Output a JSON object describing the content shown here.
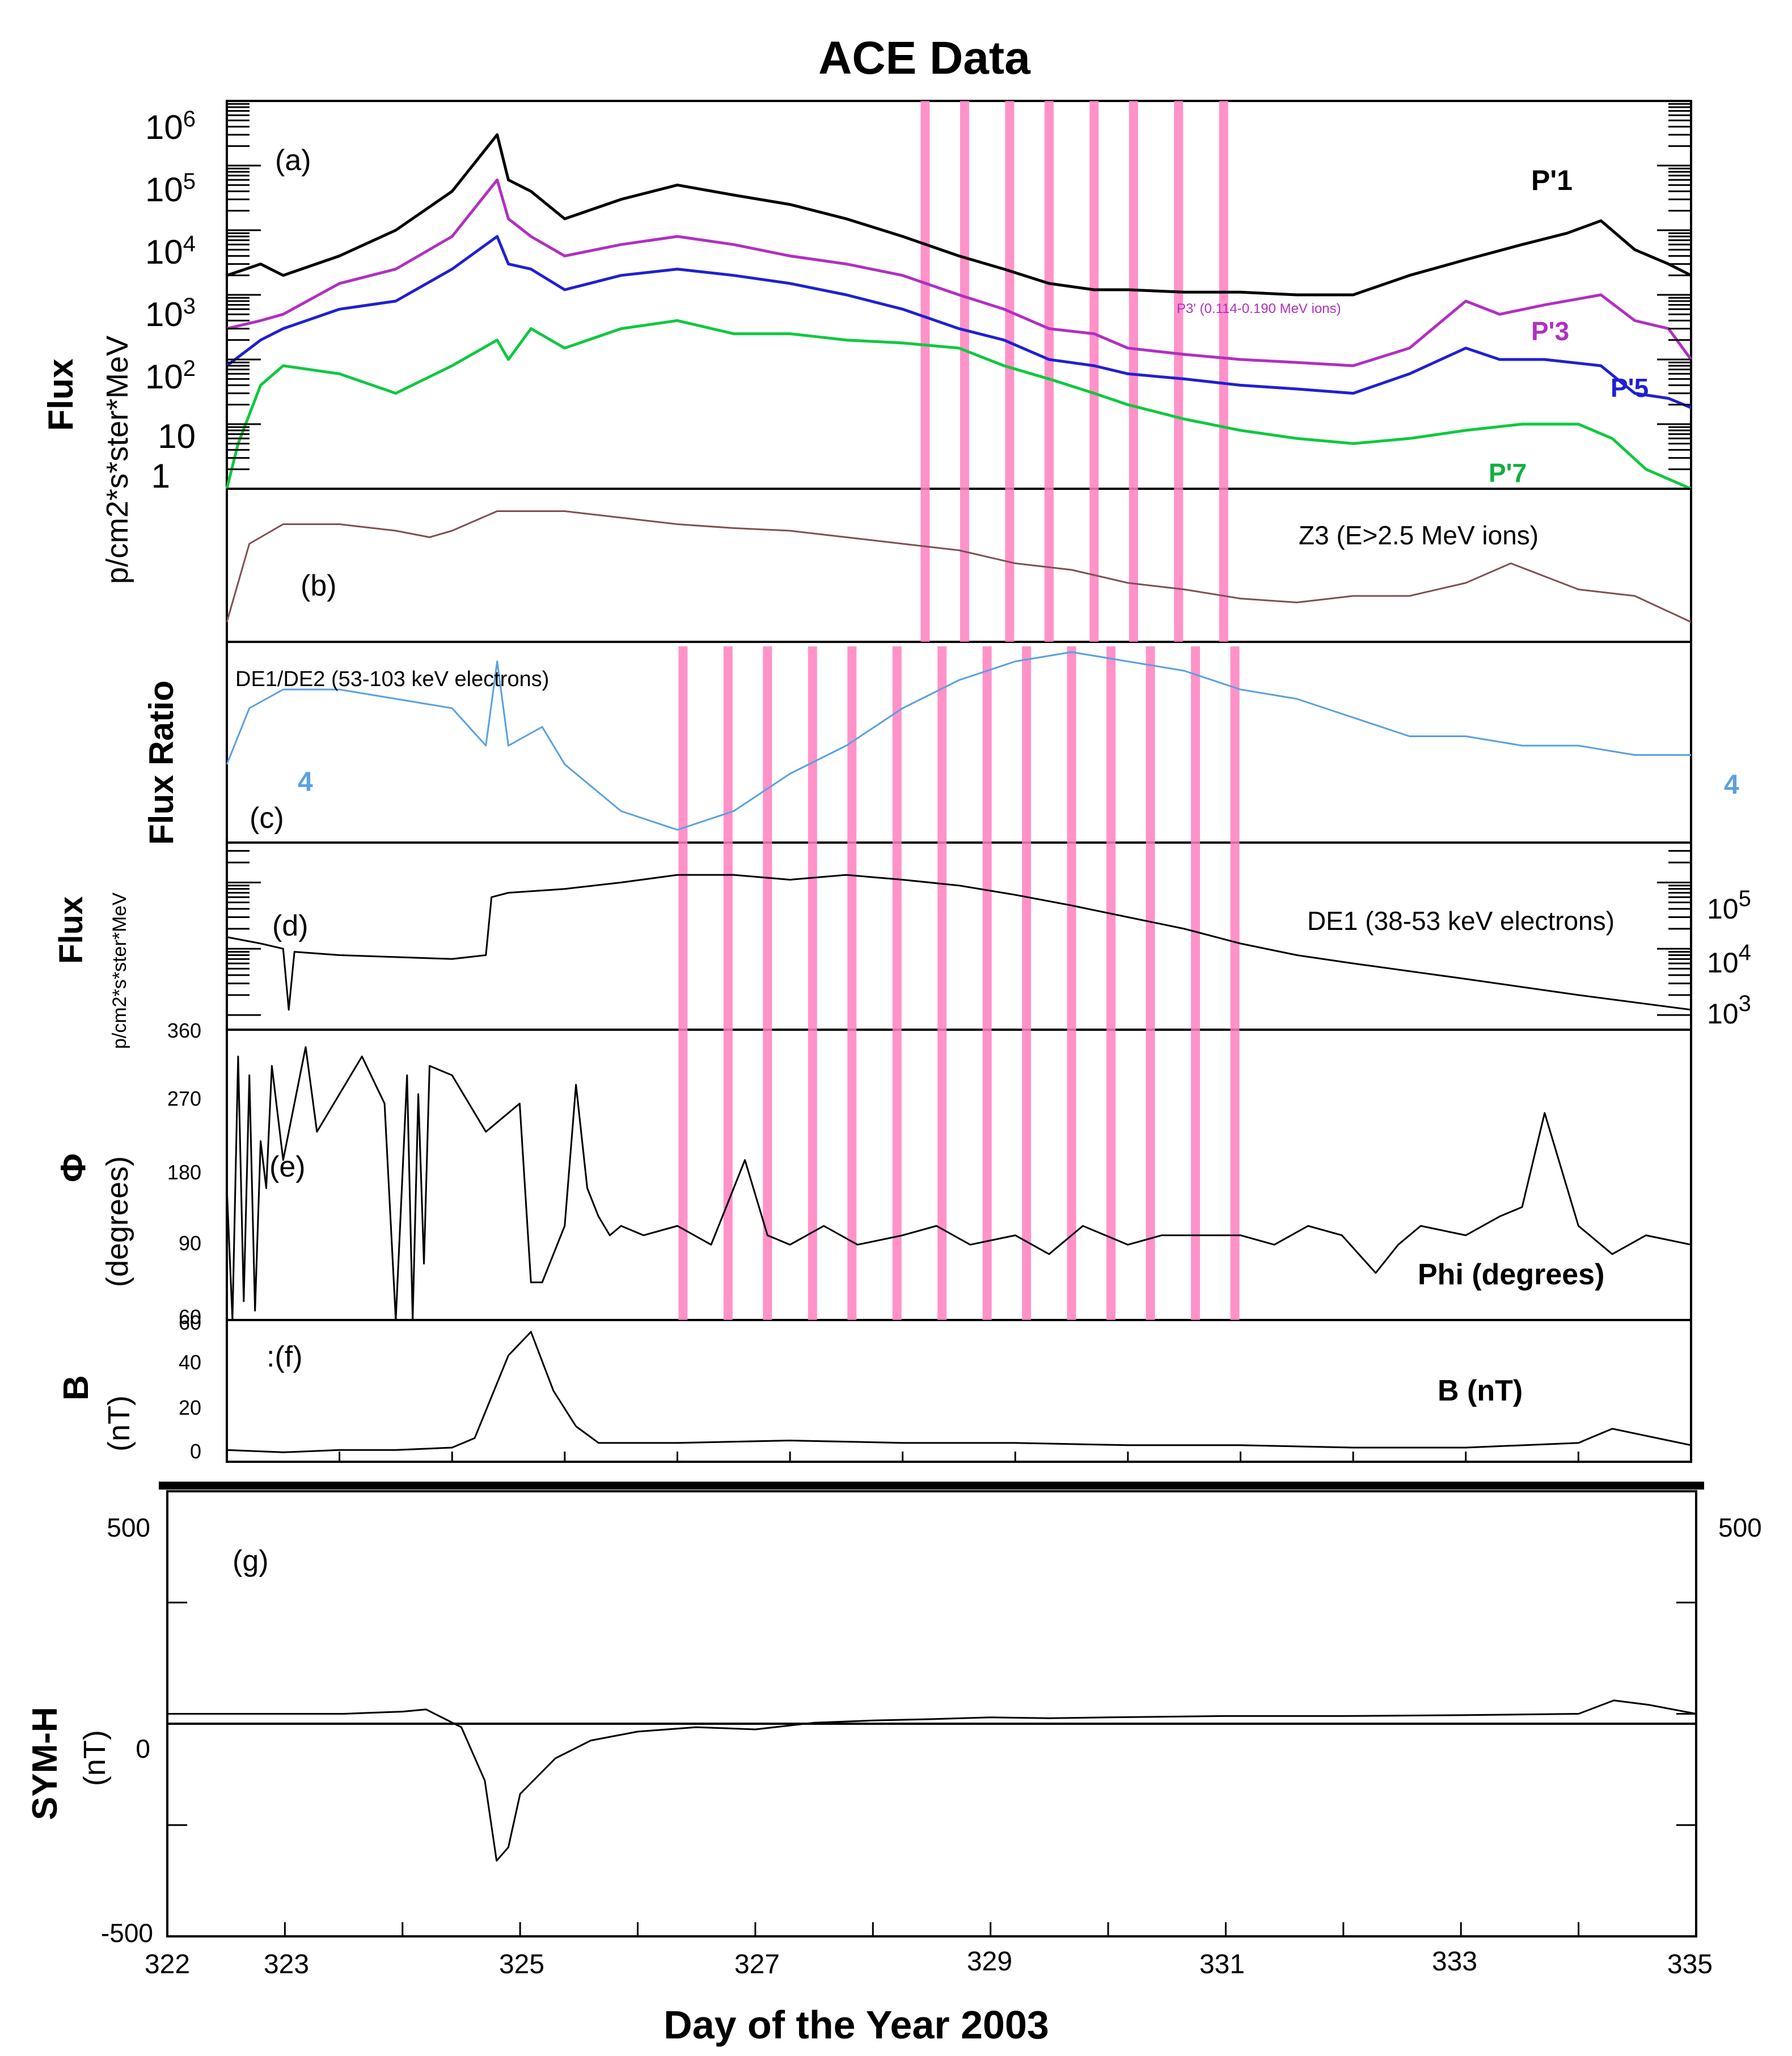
{
  "chart_data": {
    "title": "ACE Data",
    "type": "line",
    "x_range": [
      322,
      335
    ],
    "xlabel": "Day of the Year 2003",
    "x_ticks": [
      322,
      323,
      325,
      327,
      329,
      331,
      333,
      335
    ],
    "highlight_bands": {
      "color": "#ff7fbf",
      "upper_panels_days": [
        328.2,
        328.55,
        328.95,
        329.3,
        329.7,
        330.05,
        330.45,
        330.85
      ],
      "lower_panels_days": [
        326.05,
        326.45,
        326.8,
        327.2,
        327.55,
        327.95,
        328.35,
        328.75,
        329.1,
        329.5,
        329.85,
        330.2,
        330.6,
        330.95
      ]
    },
    "panels": [
      {
        "id": "a",
        "label": "(a)",
        "ylabel": "Flux",
        "ylabel_units": "p/cm2*s*ster*MeV",
        "y_scale": "log",
        "y_ticks": [
          {
            "label": "10",
            "exp": "6",
            "value": 1000000
          },
          {
            "label": "10",
            "exp": "5",
            "value": 100000
          },
          {
            "label": "10",
            "exp": "4",
            "value": 10000
          },
          {
            "label": "10",
            "exp": "3",
            "value": 1000
          },
          {
            "label": "10",
            "exp": "2",
            "value": 100
          },
          {
            "label": "10",
            "exp": "",
            "value": 10
          },
          {
            "label": "1",
            "exp": "",
            "value": 1
          }
        ],
        "annotation": "P3' (0.114-0.190 MeV ions)",
        "series": [
          {
            "name": "P'1",
            "color": "#000000",
            "x": [
              322,
              322.3,
              322.5,
              323,
              323.5,
              324,
              324.4,
              324.5,
              324.7,
              325,
              325.5,
              326,
              326.5,
              327,
              327.5,
              328,
              328.5,
              328.9,
              329.3,
              329.7,
              330,
              330.5,
              331,
              331.5,
              332,
              332.5,
              333,
              333.5,
              333.9,
              334.2,
              334.5,
              334.8,
              335
            ],
            "values": [
              2000,
              3000,
              2000,
              4000,
              10000,
              40000,
              300000,
              60000,
              40000,
              15000,
              30000,
              50000,
              35000,
              25000,
              15000,
              8000,
              4000,
              2500,
              1500,
              1200,
              1200,
              1100,
              1100,
              1000,
              1000,
              2000,
              3500,
              6000,
              9000,
              14000,
              5000,
              3000,
              2000
            ]
          },
          {
            "name": "P'3",
            "color": "#b030c0",
            "x": [
              322,
              322.3,
              322.5,
              323,
              323.5,
              324,
              324.4,
              324.5,
              324.7,
              325,
              325.5,
              326,
              326.5,
              327,
              327.5,
              328,
              328.5,
              328.9,
              329.3,
              329.7,
              330,
              330.5,
              331,
              331.5,
              332,
              332.5,
              333,
              333.3,
              333.7,
              334.2,
              334.5,
              334.8,
              335
            ],
            "values": [
              300,
              400,
              500,
              1500,
              2500,
              8000,
              60000,
              15000,
              8000,
              4000,
              6000,
              8000,
              6000,
              4000,
              3000,
              2000,
              1000,
              600,
              300,
              250,
              150,
              120,
              100,
              90,
              80,
              150,
              800,
              500,
              700,
              1000,
              400,
              300,
              100
            ]
          },
          {
            "name": "P'5",
            "color": "#2020d0",
            "x": [
              322,
              322.3,
              322.5,
              323,
              323.5,
              324,
              324.4,
              324.5,
              324.7,
              325,
              325.5,
              326,
              326.5,
              327,
              327.5,
              328,
              328.5,
              328.9,
              329.3,
              329.7,
              330,
              330.5,
              331,
              331.5,
              332,
              332.5,
              333,
              333.3,
              333.7,
              334.2,
              334.5,
              334.8,
              335
            ],
            "values": [
              80,
              200,
              300,
              600,
              800,
              2500,
              8000,
              3000,
              2500,
              1200,
              2000,
              2500,
              2000,
              1500,
              1000,
              600,
              300,
              200,
              100,
              80,
              60,
              50,
              40,
              35,
              30,
              60,
              150,
              100,
              100,
              80,
              30,
              25,
              18
            ]
          },
          {
            "name": "P'7",
            "color": "#10c840",
            "x": [
              322,
              322.1,
              322.3,
              322.5,
              323,
              323.5,
              324,
              324.4,
              324.5,
              324.7,
              325,
              325.5,
              326,
              326.5,
              327,
              327.5,
              328,
              328.5,
              328.9,
              329.3,
              329.7,
              330,
              330.5,
              331,
              331.5,
              332,
              332.5,
              333,
              333.5,
              334,
              334.3,
              334.6,
              335
            ],
            "values": [
              1,
              5,
              40,
              80,
              60,
              30,
              80,
              200,
              100,
              300,
              150,
              300,
              400,
              250,
              250,
              200,
              180,
              150,
              80,
              50,
              30,
              20,
              12,
              8,
              6,
              5,
              6,
              8,
              10,
              10,
              6,
              2,
              1
            ]
          }
        ]
      },
      {
        "id": "b",
        "label": "(b)",
        "series": [
          {
            "name": "Z3 (E>2.5 MeV ions)",
            "color": "#805050",
            "x": [
              322,
              322.2,
              322.5,
              323,
              323.5,
              323.8,
              324,
              324.4,
              325,
              325.5,
              326,
              326.5,
              327,
              327.5,
              328,
              328.5,
              329,
              329.5,
              330,
              330.5,
              331,
              331.5,
              332,
              332.5,
              333,
              333.4,
              334,
              334.5,
              335
            ],
            "values": [
              0.1,
              0.7,
              0.85,
              0.85,
              0.8,
              0.75,
              0.8,
              0.95,
              0.95,
              0.9,
              0.85,
              0.82,
              0.8,
              0.75,
              0.7,
              0.65,
              0.55,
              0.5,
              0.4,
              0.35,
              0.28,
              0.25,
              0.3,
              0.3,
              0.4,
              0.55,
              0.35,
              0.3,
              0.1
            ]
          }
        ]
      },
      {
        "id": "c",
        "label": "(c)",
        "ylabel": "Flux Ratio",
        "tick_label_left": "4",
        "tick_label_right": "4",
        "series": [
          {
            "name": "DE1/DE2 (53-103 keV electrons)",
            "color": "#5aa0e0",
            "x": [
              322,
              322.2,
              322.5,
              323,
              323.5,
              324,
              324.3,
              324.4,
              324.5,
              324.8,
              325,
              325.5,
              326,
              326.5,
              327,
              327.5,
              328,
              328.5,
              329,
              329.5,
              330,
              330.5,
              331,
              331.5,
              332,
              332.5,
              333,
              333.5,
              334,
              334.5,
              335
            ],
            "values": [
              0.4,
              0.7,
              0.8,
              0.8,
              0.75,
              0.7,
              0.5,
              0.95,
              0.5,
              0.6,
              0.4,
              0.15,
              0.05,
              0.15,
              0.35,
              0.5,
              0.7,
              0.85,
              0.95,
              1.0,
              0.95,
              0.9,
              0.8,
              0.75,
              0.65,
              0.55,
              0.55,
              0.5,
              0.5,
              0.45,
              0.45
            ]
          }
        ]
      },
      {
        "id": "d",
        "label": "(d)",
        "ylabel": "Flux",
        "ylabel_units": "p/cm2*s*ster*MeV",
        "y_scale": "log",
        "y_ticks_right": [
          {
            "label": "10",
            "exp": "5",
            "value": 100000
          },
          {
            "label": "10",
            "exp": "4",
            "value": 10000
          },
          {
            "label": "10",
            "exp": "3",
            "value": 1000
          }
        ],
        "series": [
          {
            "name": "DE1 (38-53 keV electrons)",
            "color": "#000000",
            "x": [
              322,
              322.3,
              322.5,
              322.55,
              322.6,
              323,
              324,
              324.3,
              324.35,
              324.5,
              325,
              325.5,
              326,
              326.5,
              327,
              327.5,
              328,
              328.5,
              329,
              329.5,
              330,
              330.5,
              331,
              331.5,
              332,
              333,
              334,
              335
            ],
            "values": [
              15000,
              12000,
              10000,
              1200,
              9000,
              8000,
              7000,
              8000,
              60000,
              70000,
              80000,
              100000,
              130000,
              130000,
              110000,
              130000,
              110000,
              90000,
              65000,
              45000,
              30000,
              20000,
              12000,
              8000,
              6000,
              3500,
              2000,
              1200
            ]
          }
        ]
      },
      {
        "id": "e",
        "label": "(e)",
        "ylabel": "Φ",
        "ylabel_units": "(degrees)",
        "y_range": [
          60,
          360
        ],
        "y_ticks": [
          "360",
          "270",
          "180",
          "90",
          "60"
        ],
        "series": [
          {
            "name": "Phi (degrees)",
            "color": "#000000",
            "x": [
              322,
              322.05,
              322.1,
              322.15,
              322.2,
              322.25,
              322.3,
              322.35,
              322.4,
              322.5,
              322.7,
              322.8,
              323,
              323.2,
              323.4,
              323.5,
              323.6,
              323.65,
              323.7,
              323.75,
              323.8,
              324,
              324.3,
              324.6,
              324.7,
              324.8,
              325,
              325.1,
              325.2,
              325.3,
              325.4,
              325.5,
              325.7,
              326,
              326.3,
              326.5,
              326.6,
              326.8,
              327,
              327.3,
              327.6,
              328,
              328.3,
              328.6,
              329,
              329.3,
              329.6,
              330,
              330.3,
              330.6,
              331,
              331.3,
              331.6,
              331.9,
              332.2,
              332.4,
              332.6,
              333,
              333.3,
              333.5,
              333.7,
              334,
              334.3,
              334.6,
              335
            ],
            "values": [
              200,
              60,
              340,
              80,
              320,
              70,
              250,
              200,
              330,
              230,
              350,
              260,
              300,
              340,
              290,
              60,
              320,
              60,
              300,
              120,
              330,
              320,
              260,
              290,
              100,
              100,
              160,
              310,
              200,
              170,
              150,
              160,
              150,
              160,
              140,
              200,
              230,
              150,
              140,
              160,
              140,
              150,
              160,
              140,
              150,
              130,
              160,
              140,
              150,
              150,
              150,
              140,
              160,
              150,
              110,
              140,
              160,
              150,
              170,
              180,
              280,
              160,
              130,
              150,
              140
            ]
          }
        ]
      },
      {
        "id": "f",
        "label": ":(f)",
        "ylabel": "B",
        "ylabel_units": "(nT)",
        "y_range": [
          0,
          60
        ],
        "y_ticks": [
          "60",
          "40",
          "20",
          "0"
        ],
        "series": [
          {
            "name": "B (nT)",
            "color": "#000000",
            "x": [
              322,
              322.5,
              323,
              323.5,
              324,
              324.2,
              324.5,
              324.7,
              324.9,
              325.1,
              325.3,
              326,
              327,
              328,
              329,
              330,
              331,
              332,
              333,
              334,
              334.3,
              334.6,
              335
            ],
            "values": [
              5,
              4,
              5,
              5,
              6,
              10,
              45,
              55,
              30,
              15,
              8,
              8,
              9,
              8,
              8,
              7,
              7,
              6,
              6,
              8,
              14,
              11,
              7
            ]
          }
        ]
      },
      {
        "id": "g",
        "label": "(g)",
        "ylabel": "SYM-H",
        "ylabel_units": "(nT)",
        "y_range": [
          -500,
          500
        ],
        "y_ticks_left": [
          "500",
          "0",
          "-500"
        ],
        "y_ticks_right": [
          "500"
        ],
        "series": [
          {
            "name": "SYM-H",
            "color": "#000000",
            "x": [
              322,
              322.5,
              323,
              323.5,
              324,
              324.2,
              324.5,
              324.7,
              324.8,
              324.9,
              325,
              325.3,
              325.6,
              326,
              326.5,
              327,
              327.5,
              328,
              328.5,
              329,
              329.5,
              330,
              331,
              332,
              333,
              334,
              334.3,
              334.6,
              335
            ],
            "values": [
              0,
              0,
              0,
              0,
              5,
              10,
              -30,
              -150,
              -330,
              -300,
              -180,
              -100,
              -60,
              -40,
              -30,
              -35,
              -20,
              -15,
              -12,
              -8,
              -10,
              -8,
              -5,
              -5,
              -3,
              0,
              30,
              20,
              0
            ]
          }
        ]
      }
    ]
  }
}
